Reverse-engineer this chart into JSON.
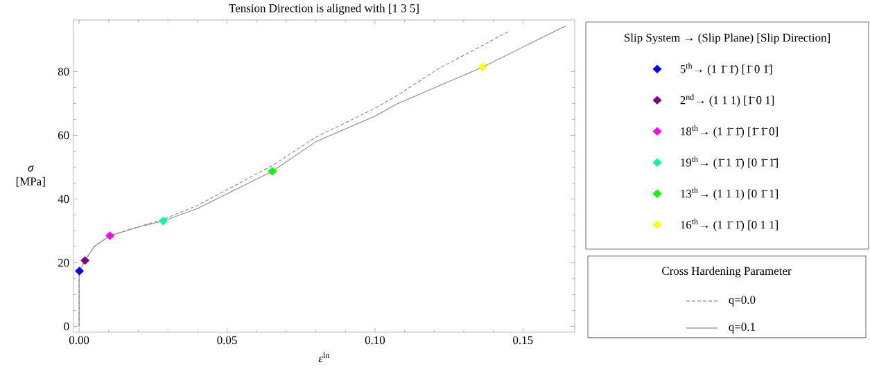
{
  "chart_data": {
    "type": "line",
    "title": "Tension Direction is aligned with [1 3 5]",
    "xlabel": "*ε*$^{ln}$",
    "ylabel": "*σ* [MPa]",
    "legend_title": "Slip System → (Slip Plane) [Slip Direction]",
    "annotations": [
      "Cross Hardening Parameter"
    ],
    "xlim": [
      -0.0019,
      0.1675
    ],
    "ylim": [
      -1.8,
      96.2
    ],
    "xticks": [
      {
        "value": 0,
        "label": "0.00"
      },
      {
        "value": 0.05,
        "label": "0.05"
      },
      {
        "value": 0.1,
        "label": "0.10"
      },
      {
        "value": 0.15,
        "label": "0.15"
      }
    ],
    "yticks": [
      0,
      20,
      40,
      60,
      80
    ],
    "legend": "right",
    "series": [
      {
        "name": "5$^{th}$→  (1 1̄ 1̄) [1̄ 0 1̄]",
        "type": "scatter",
        "marker": "diamond",
        "color": "#0000ff",
        "x": [
          0.0001
        ],
        "values": [
          17.4
        ]
      },
      {
        "name": "2$^{nd}$→  (1 1 1) [1̄ 0 1]",
        "type": "scatter",
        "marker": "diamond",
        "color": "#800080",
        "x": [
          0.002
        ],
        "values": [
          20.7
        ]
      },
      {
        "name": "18$^{th}$→  (1 1̄ 1̄) [1̄ 1̄ 0]",
        "type": "scatter",
        "marker": "diamond",
        "color": "#ff00ff",
        "x": [
          0.0104
        ],
        "values": [
          28.5
        ]
      },
      {
        "name": "19$^{th}$→  (1̄ 1 1̄) [0 1̄ 1̄]",
        "type": "scatter",
        "marker": "diamond",
        "color": "#00ff99",
        "x": [
          0.0284
        ],
        "values": [
          33.1
        ]
      },
      {
        "name": "13$^{th}$→  (1 1 1) [0 1̄ 1]",
        "type": "scatter",
        "marker": "diamond",
        "color": "#00ff00",
        "x": [
          0.0653
        ],
        "values": [
          48.7
        ]
      },
      {
        "name": "16$^{th}$→  (1 1̄ 1̄) [0 1 1]",
        "type": "scatter",
        "marker": "diamond",
        "color": "#ffff00",
        "x": [
          0.1363
        ],
        "values": [
          81.4
        ]
      },
      {
        "name": "q=0.0",
        "marker": "none",
        "line_style": "dashed",
        "color": "#888888",
        "x": [
          0,
          0,
          0.002,
          0.005,
          0.0104,
          0.02,
          0.0284,
          0.04,
          0.0653,
          0.08,
          0.1,
          0.1075,
          0.1216,
          0.1452
        ],
        "values": [
          0,
          17.4,
          20.7,
          25,
          28.5,
          31.3,
          33.6,
          38,
          50.5,
          59.4,
          68.5,
          72.5,
          81,
          92.6
        ]
      },
      {
        "name": "q=0.1",
        "marker": "none",
        "line_style": "solid",
        "color": "#888888",
        "x": [
          0,
          0,
          0.002,
          0.005,
          0.0104,
          0.02,
          0.0284,
          0.04,
          0.0653,
          0.08,
          0.1,
          0.1075,
          0.1363,
          0.1644
        ],
        "values": [
          0,
          17.4,
          20.7,
          25,
          28.5,
          31.2,
          33.1,
          37,
          48.7,
          58,
          66,
          69.9,
          81.4,
          94.3
        ]
      }
    ]
  }
}
